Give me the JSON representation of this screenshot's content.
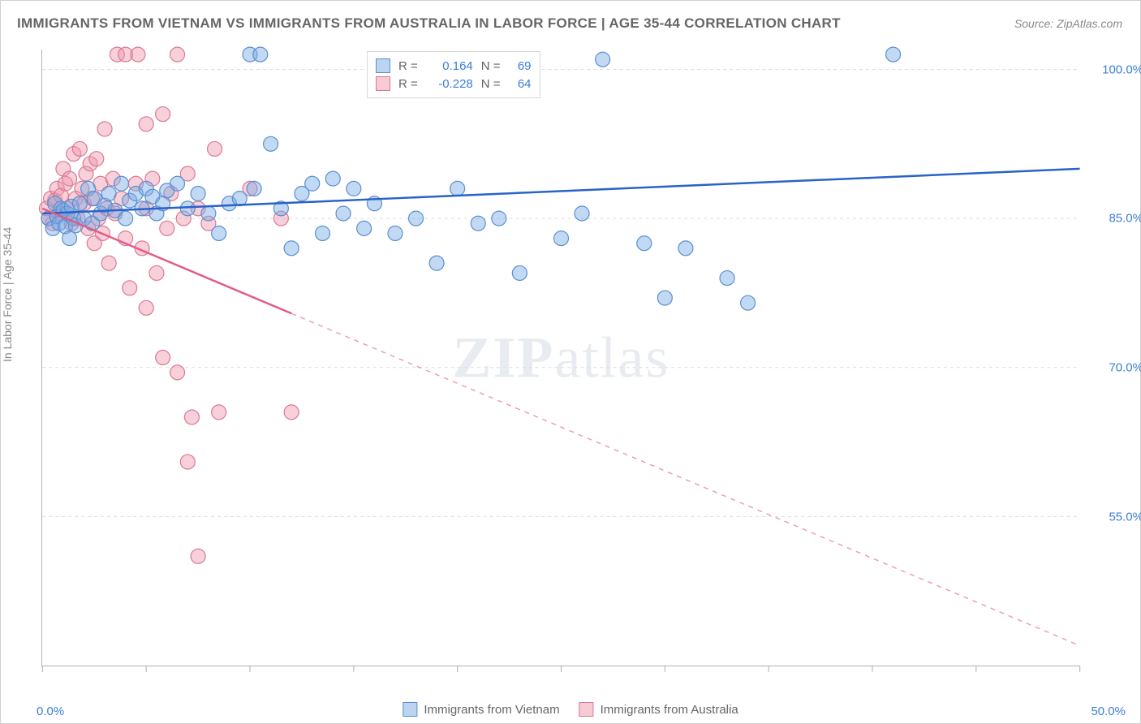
{
  "title": "IMMIGRANTS FROM VIETNAM VS IMMIGRANTS FROM AUSTRALIA IN LABOR FORCE | AGE 35-44 CORRELATION CHART",
  "source": "Source: ZipAtlas.com",
  "watermark_a": "ZIP",
  "watermark_b": "atlas",
  "ylabel": "In Labor Force | Age 35-44",
  "chart": {
    "type": "scatter",
    "xlim": [
      0,
      50
    ],
    "ylim": [
      40,
      102
    ],
    "xtick_positions": [
      0,
      5,
      10,
      15,
      20,
      25,
      30,
      35,
      40,
      45,
      50
    ],
    "ytick_positions": [
      55,
      70,
      85,
      100
    ],
    "ytick_labels": [
      "55.0%",
      "70.0%",
      "85.0%",
      "100.0%"
    ],
    "x_left_label": "0.0%",
    "x_right_label": "50.0%",
    "background_color": "#ffffff",
    "grid_color": "#dcdcdc",
    "axis_color": "#b0b0b0",
    "series": {
      "vietnam": {
        "label": "Immigrants from Vietnam",
        "marker_fill": "rgba(120,170,230,0.45)",
        "marker_stroke": "#5b8fce",
        "marker_r": 9,
        "line_color": "#2962c9",
        "line_width": 2.5,
        "R": "0.164",
        "N": "69",
        "trend": {
          "x1": 0,
          "y1": 85.5,
          "x2": 50,
          "y2": 90.0
        },
        "trend_solid_xmax": 50,
        "points": [
          [
            0.3,
            85.0
          ],
          [
            0.5,
            84.0
          ],
          [
            0.6,
            86.5
          ],
          [
            0.7,
            85.2
          ],
          [
            0.8,
            84.5
          ],
          [
            0.9,
            86.0
          ],
          [
            1.0,
            85.8
          ],
          [
            1.1,
            84.2
          ],
          [
            1.2,
            85.5
          ],
          [
            1.3,
            83.0
          ],
          [
            1.4,
            86.2
          ],
          [
            1.5,
            85.0
          ],
          [
            1.6,
            84.3
          ],
          [
            1.8,
            86.5
          ],
          [
            2.0,
            85.0
          ],
          [
            2.2,
            88.0
          ],
          [
            2.4,
            84.5
          ],
          [
            2.5,
            87.0
          ],
          [
            2.8,
            85.5
          ],
          [
            3.0,
            86.3
          ],
          [
            3.2,
            87.5
          ],
          [
            3.5,
            85.8
          ],
          [
            3.8,
            88.5
          ],
          [
            4.0,
            85.0
          ],
          [
            4.2,
            86.8
          ],
          [
            4.5,
            87.5
          ],
          [
            4.8,
            86.0
          ],
          [
            5.0,
            88.0
          ],
          [
            5.3,
            87.2
          ],
          [
            5.5,
            85.5
          ],
          [
            5.8,
            86.5
          ],
          [
            6.0,
            87.8
          ],
          [
            6.5,
            88.5
          ],
          [
            7.0,
            86.0
          ],
          [
            7.5,
            87.5
          ],
          [
            8.0,
            85.5
          ],
          [
            8.5,
            83.5
          ],
          [
            9.0,
            86.5
          ],
          [
            9.5,
            87.0
          ],
          [
            10.0,
            101.5
          ],
          [
            10.2,
            88.0
          ],
          [
            10.5,
            101.5
          ],
          [
            11.0,
            92.5
          ],
          [
            11.5,
            86.0
          ],
          [
            12.0,
            82.0
          ],
          [
            12.5,
            87.5
          ],
          [
            13.0,
            88.5
          ],
          [
            13.5,
            83.5
          ],
          [
            14.0,
            89.0
          ],
          [
            14.5,
            85.5
          ],
          [
            15.0,
            88.0
          ],
          [
            15.5,
            84.0
          ],
          [
            16.0,
            86.5
          ],
          [
            17.0,
            83.5
          ],
          [
            18.0,
            85.0
          ],
          [
            19.0,
            80.5
          ],
          [
            20.0,
            88.0
          ],
          [
            21.0,
            84.5
          ],
          [
            22.0,
            85.0
          ],
          [
            23.0,
            79.5
          ],
          [
            25.0,
            83.0
          ],
          [
            26.0,
            85.5
          ],
          [
            27.0,
            101.0
          ],
          [
            29.0,
            82.5
          ],
          [
            30.0,
            77.0
          ],
          [
            31.0,
            82.0
          ],
          [
            33.0,
            79.0
          ],
          [
            34.0,
            76.5
          ],
          [
            41.0,
            101.5
          ]
        ]
      },
      "australia": {
        "label": "Immigrants from Australia",
        "marker_fill": "rgba(240,150,170,0.45)",
        "marker_stroke": "#d97a95",
        "marker_r": 9,
        "line_color": "#e35c85",
        "line_width": 2.5,
        "R": "-0.228",
        "N": "64",
        "trend": {
          "x1": 0,
          "y1": 86.0,
          "x2": 50,
          "y2": 42.0
        },
        "trend_solid_xmax": 12,
        "points": [
          [
            0.2,
            86.0
          ],
          [
            0.3,
            85.0
          ],
          [
            0.4,
            87.0
          ],
          [
            0.5,
            84.5
          ],
          [
            0.6,
            86.8
          ],
          [
            0.7,
            88.0
          ],
          [
            0.8,
            85.5
          ],
          [
            0.9,
            87.3
          ],
          [
            1.0,
            90.0
          ],
          [
            1.1,
            88.5
          ],
          [
            1.2,
            86.0
          ],
          [
            1.3,
            89.0
          ],
          [
            1.4,
            84.5
          ],
          [
            1.5,
            91.5
          ],
          [
            1.6,
            87.0
          ],
          [
            1.7,
            85.0
          ],
          [
            1.8,
            92.0
          ],
          [
            1.9,
            88.0
          ],
          [
            2.0,
            86.5
          ],
          [
            2.1,
            89.5
          ],
          [
            2.2,
            84.0
          ],
          [
            2.3,
            90.5
          ],
          [
            2.4,
            87.0
          ],
          [
            2.5,
            82.5
          ],
          [
            2.6,
            91.0
          ],
          [
            2.7,
            85.0
          ],
          [
            2.8,
            88.5
          ],
          [
            2.9,
            83.5
          ],
          [
            3.0,
            94.0
          ],
          [
            3.1,
            86.0
          ],
          [
            3.2,
            80.5
          ],
          [
            3.4,
            89.0
          ],
          [
            3.5,
            85.5
          ],
          [
            3.6,
            101.5
          ],
          [
            3.8,
            87.0
          ],
          [
            4.0,
            83.0
          ],
          [
            4.0,
            101.5
          ],
          [
            4.2,
            78.0
          ],
          [
            4.5,
            88.5
          ],
          [
            4.6,
            101.5
          ],
          [
            4.8,
            82.0
          ],
          [
            5.0,
            94.5
          ],
          [
            5.0,
            86.0
          ],
          [
            5.0,
            76.0
          ],
          [
            5.3,
            89.0
          ],
          [
            5.5,
            79.5
          ],
          [
            5.8,
            95.5
          ],
          [
            5.8,
            71.0
          ],
          [
            6.0,
            84.0
          ],
          [
            6.2,
            87.5
          ],
          [
            6.5,
            101.5
          ],
          [
            6.5,
            69.5
          ],
          [
            6.8,
            85.0
          ],
          [
            7.0,
            89.5
          ],
          [
            7.0,
            60.5
          ],
          [
            7.2,
            65.0
          ],
          [
            7.5,
            86.0
          ],
          [
            7.5,
            51.0
          ],
          [
            8.0,
            84.5
          ],
          [
            8.3,
            92.0
          ],
          [
            8.5,
            65.5
          ],
          [
            10.0,
            88.0
          ],
          [
            11.5,
            85.0
          ],
          [
            12.0,
            65.5
          ]
        ]
      }
    },
    "top_legend_labels": {
      "R": "R =",
      "N": "N ="
    }
  },
  "bottom_legend": {
    "vietnam": "Immigrants from Vietnam",
    "australia": "Immigrants from Australia"
  }
}
